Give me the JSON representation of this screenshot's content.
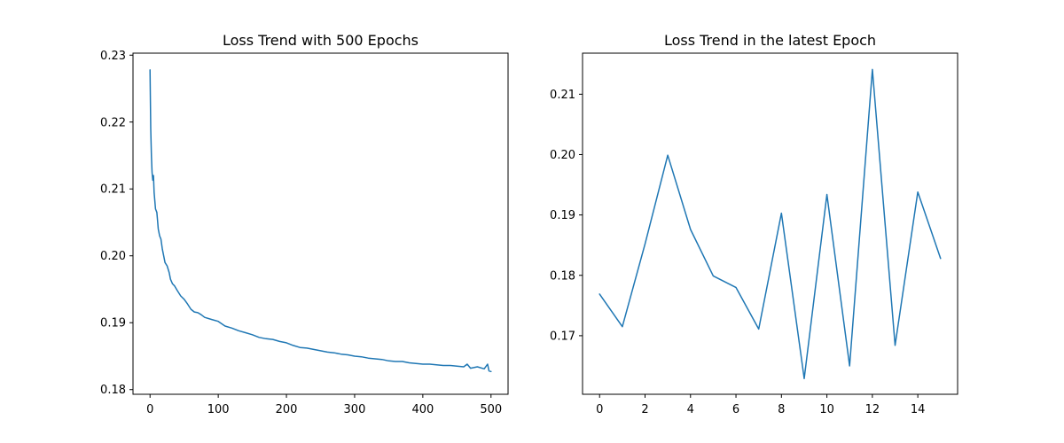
{
  "chart_data": [
    {
      "type": "line",
      "title": "Loss Trend with 500 Epochs",
      "xlabel": "",
      "ylabel": "",
      "xlim": [
        -25,
        525
      ],
      "ylim": [
        0.1793,
        0.2303
      ],
      "xticks": [
        0,
        100,
        200,
        300,
        400,
        500
      ],
      "yticks": [
        0.18,
        0.19,
        0.2,
        0.21,
        0.22,
        0.23
      ],
      "ytick_labels": [
        "0.18",
        "0.19",
        "0.20",
        "0.21",
        "0.22",
        "0.23"
      ],
      "grid": false,
      "color": "#1f77b4",
      "series": [
        {
          "x": [
            0,
            1,
            2,
            3,
            4,
            5,
            6,
            8,
            10,
            12,
            14,
            16,
            18,
            20,
            22,
            25,
            28,
            30,
            33,
            36,
            40,
            45,
            50,
            55,
            60,
            65,
            70,
            75,
            80,
            90,
            100,
            110,
            120,
            130,
            140,
            150,
            160,
            170,
            180,
            190,
            200,
            210,
            220,
            230,
            240,
            250,
            260,
            270,
            280,
            290,
            300,
            310,
            320,
            330,
            340,
            350,
            360,
            370,
            380,
            390,
            400,
            410,
            420,
            430,
            440,
            450,
            460,
            465,
            470,
            480,
            490,
            495,
            497,
            500
          ],
          "y": [
            0.2278,
            0.219,
            0.2148,
            0.2125,
            0.2113,
            0.212,
            0.2095,
            0.207,
            0.2065,
            0.204,
            0.203,
            0.2025,
            0.201,
            0.2,
            0.199,
            0.1985,
            0.1975,
            0.1965,
            0.1958,
            0.1955,
            0.1948,
            0.194,
            0.1935,
            0.1928,
            0.192,
            0.1916,
            0.1915,
            0.1912,
            0.1908,
            0.1905,
            0.1902,
            0.1895,
            0.1892,
            0.1888,
            0.1885,
            0.1882,
            0.1878,
            0.1876,
            0.1875,
            0.1872,
            0.187,
            0.1866,
            0.1863,
            0.1862,
            0.186,
            0.1858,
            0.1856,
            0.1855,
            0.1853,
            0.1852,
            0.185,
            0.1849,
            0.1847,
            0.1846,
            0.1845,
            0.1843,
            0.1842,
            0.1842,
            0.184,
            0.1839,
            0.1838,
            0.1838,
            0.1837,
            0.1836,
            0.1836,
            0.1835,
            0.1834,
            0.1838,
            0.1832,
            0.1834,
            0.1831,
            0.1838,
            0.1828,
            0.1827
          ]
        }
      ]
    },
    {
      "type": "line",
      "title": "Loss Trend in the latest Epoch",
      "xlabel": "",
      "ylabel": "",
      "xlim": [
        -0.75,
        15.75
      ],
      "ylim": [
        0.1603,
        0.2168
      ],
      "xticks": [
        0,
        2,
        4,
        6,
        8,
        10,
        12,
        14
      ],
      "yticks": [
        0.17,
        0.18,
        0.19,
        0.2,
        0.21
      ],
      "ytick_labels": [
        "0.17",
        "0.18",
        "0.19",
        "0.20",
        "0.21"
      ],
      "grid": false,
      "color": "#1f77b4",
      "series": [
        {
          "x": [
            0,
            1,
            2,
            3,
            4,
            5,
            6,
            7,
            8,
            9,
            10,
            11,
            12,
            13,
            14,
            15
          ],
          "y": [
            0.1769,
            0.1715,
            0.1852,
            0.1999,
            0.1876,
            0.1799,
            0.178,
            0.1711,
            0.1903,
            0.1629,
            0.1934,
            0.165,
            0.2141,
            0.1684,
            0.1938,
            0.1828
          ]
        }
      ]
    }
  ]
}
